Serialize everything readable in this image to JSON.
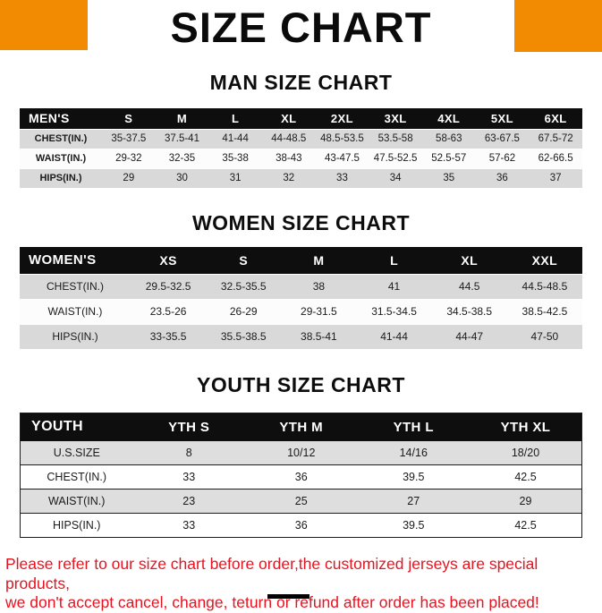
{
  "page": {
    "title": "SIZE CHART"
  },
  "colors": {
    "accent": "#F28B02",
    "header-bg": "#0E0E0E",
    "stripe": "#D9D9D9",
    "footer-red": "#E51420"
  },
  "sections": [
    {
      "heading": "MAN SIZE CHART",
      "table": {
        "header": [
          "MEN'S",
          "S",
          "M",
          "L",
          "XL",
          "2XL",
          "3XL",
          "4XL",
          "5XL",
          "6XL"
        ],
        "rows": [
          [
            "CHEST(IN.)",
            "35-37.5",
            "37.5-41",
            "41-44",
            "44-48.5",
            "48.5-53.5",
            "53.5-58",
            "58-63",
            "63-67.5",
            "67.5-72"
          ],
          [
            "WAIST(IN.)",
            "29-32",
            "32-35",
            "35-38",
            "38-43",
            "43-47.5",
            "47.5-52.5",
            "52.5-57",
            "57-62",
            "62-66.5"
          ],
          [
            "HIPS(IN.)",
            "29",
            "30",
            "31",
            "32",
            "33",
            "34",
            "35",
            "36",
            "37"
          ]
        ]
      }
    },
    {
      "heading": "WOMEN SIZE CHART",
      "table": {
        "header": [
          "WOMEN'S",
          "XS",
          "S",
          "M",
          "L",
          "XL",
          "XXL"
        ],
        "rows": [
          [
            "CHEST(IN.)",
            "29.5-32.5",
            "32.5-35.5",
            "38",
            "41",
            "44.5",
            "44.5-48.5"
          ],
          [
            "WAIST(IN.)",
            "23.5-26",
            "26-29",
            "29-31.5",
            "31.5-34.5",
            "34.5-38.5",
            "38.5-42.5"
          ],
          [
            "HIPS(IN.)",
            "33-35.5",
            "35.5-38.5",
            "38.5-41",
            "41-44",
            "44-47",
            "47-50"
          ]
        ]
      }
    },
    {
      "heading": "YOUTH SIZE CHART",
      "table": {
        "header": [
          "YOUTH",
          "YTH S",
          "YTH M",
          "YTH L",
          "YTH XL"
        ],
        "rows": [
          [
            "U.S.SIZE",
            "8",
            "10/12",
            "14/16",
            "18/20"
          ],
          [
            "CHEST(IN.)",
            "33",
            "36",
            "39.5",
            "42.5"
          ],
          [
            "WAIST(IN.)",
            "23",
            "25",
            "27",
            "29"
          ],
          [
            "HIPS(IN.)",
            "33",
            "36",
            "39.5",
            "42.5"
          ]
        ]
      }
    }
  ],
  "footer": {
    "line1": "Please refer to our size chart before order,the customized jerseys are special products,",
    "line2": "we don't accept cancel, change, teturn or refund after order has been placed!"
  }
}
